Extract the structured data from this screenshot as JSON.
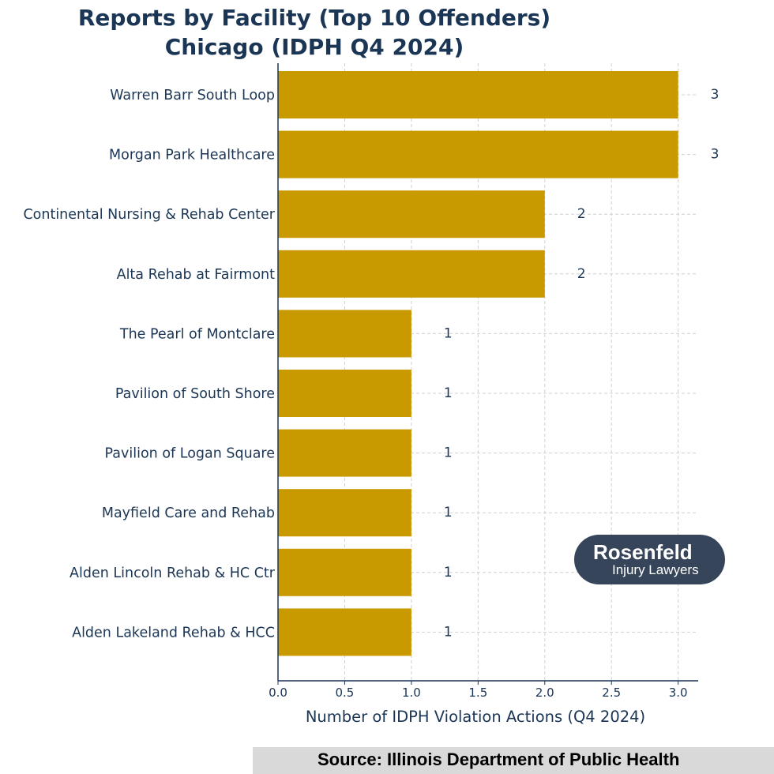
{
  "chart_data": {
    "type": "bar",
    "orientation": "horizontal",
    "title_line1": "Reports by Facility (Top 10 Offenders)",
    "title_line2": "Chicago (IDPH Q4 2024)",
    "xlabel": "Number of IDPH Violation Actions (Q4 2024)",
    "ylabel": "",
    "xlim": [
      0,
      3.15
    ],
    "x_ticks": [
      "0.0",
      "0.5",
      "1.0",
      "1.5",
      "2.0",
      "2.5",
      "3.0"
    ],
    "grid": true,
    "bar_color": "#c99a00",
    "categories": [
      "Warren Barr South Loop",
      "Morgan Park Healthcare",
      "Continental Nursing & Rehab Center",
      "Alta Rehab at Fairmont",
      "The Pearl of Montclare",
      "Pavilion of South Shore",
      "Pavilion of Logan Square",
      "Mayfield Care and Rehab",
      "Alden Lincoln Rehab & HC Ctr",
      "Alden Lakeland Rehab & HCC"
    ],
    "values": [
      3,
      3,
      2,
      2,
      1,
      1,
      1,
      1,
      1,
      1
    ],
    "data_labels": [
      "3",
      "3",
      "2",
      "2",
      "1",
      "1",
      "1",
      "1",
      "1",
      "1"
    ]
  },
  "source": "Source:  Illinois Department of Public Health",
  "logo": {
    "name": "Rosenfeld",
    "sub": "Injury Lawyers",
    "color": "#37455a"
  }
}
